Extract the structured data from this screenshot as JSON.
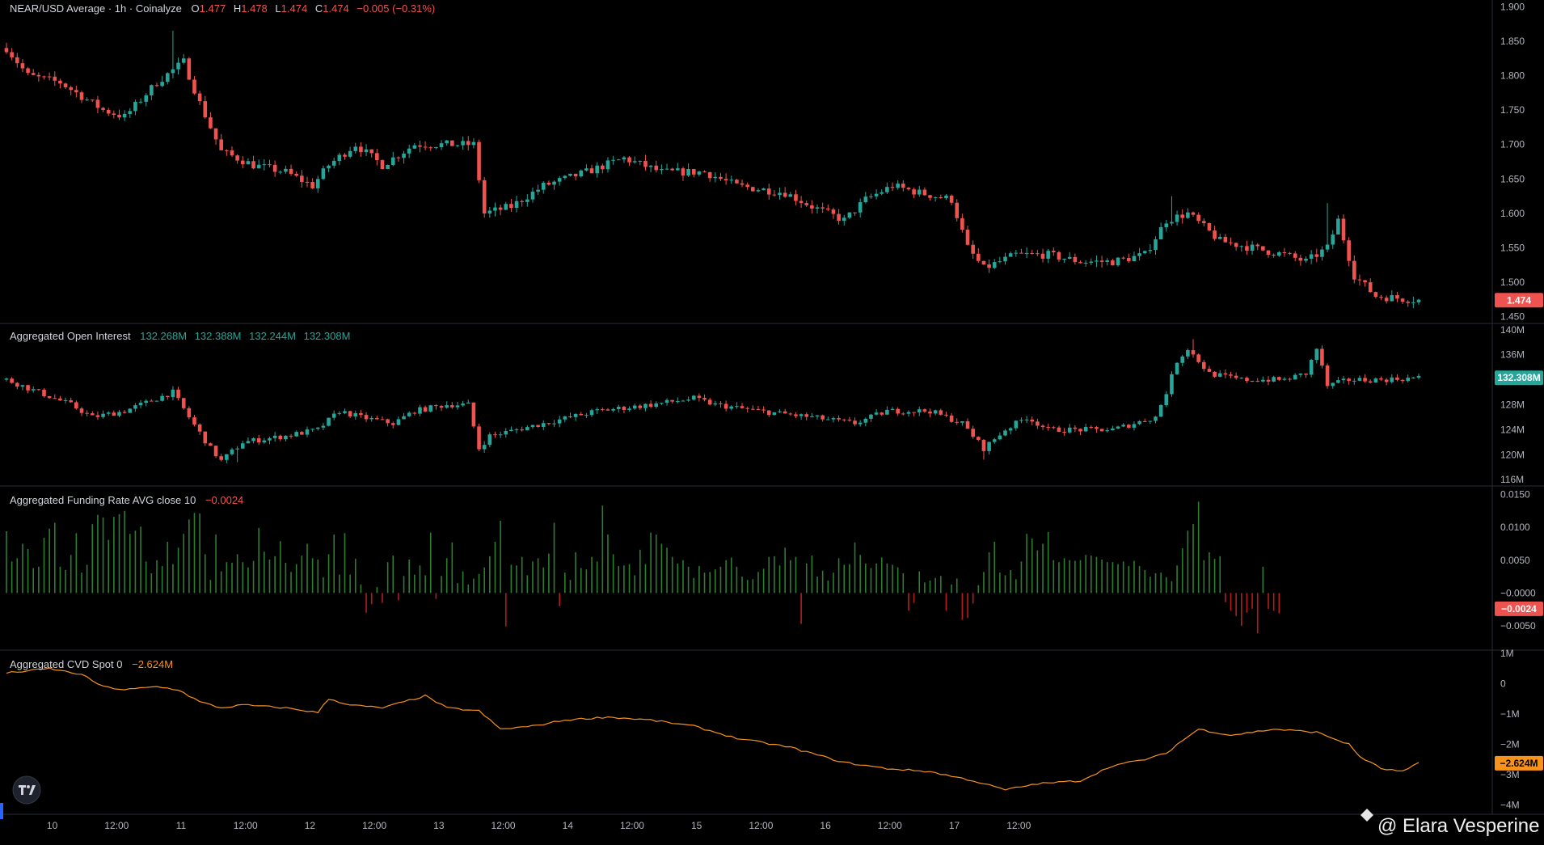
{
  "header": {
    "symbol": "NEAR/USD Average · 1h · Coinalyze",
    "o_label": "O",
    "o_value": "1.477",
    "h_label": "H",
    "h_value": "1.478",
    "l_label": "L",
    "l_value": "1.474",
    "c_label": "C",
    "c_value": "1.474",
    "change": "−0.005 (−0.31%)"
  },
  "colors": {
    "up": "#26a69a",
    "down": "#ef5350",
    "cvd": "#f7931a",
    "funding_pos": "#2e7d32",
    "funding_neg": "#b71c1c",
    "oi_tag": "#26a69a",
    "price_tag": "#ef5350",
    "funding_tag": "#ef5350",
    "cvd_tag": "#f7931a"
  },
  "x_axis": {
    "labels": [
      "10",
      "12:00",
      "11",
      "12:00",
      "12",
      "12:00",
      "13",
      "12:00",
      "14",
      "12:00",
      "15",
      "12:00",
      "16",
      "12:00",
      "17",
      "12:00"
    ]
  },
  "watermark": {
    "logo": "tradingview-logo",
    "credit": "@ Elara Vesperine"
  },
  "chart_data": [
    {
      "type": "candlestick",
      "name": "NEAR/USD Average",
      "y_ticks": [
        "1.900",
        "1.850",
        "1.800",
        "1.750",
        "1.700",
        "1.650",
        "1.600",
        "1.550",
        "1.500",
        "1.450"
      ],
      "ylim": [
        1.445,
        1.905
      ],
      "last_value": 1.474,
      "last_label": "1.474",
      "anchors": [
        [
          0,
          1.84
        ],
        [
          4,
          1.8
        ],
        [
          10,
          1.79
        ],
        [
          18,
          1.75
        ],
        [
          22,
          1.74
        ],
        [
          28,
          1.79
        ],
        [
          33,
          1.82
        ],
        [
          36,
          1.76
        ],
        [
          40,
          1.69
        ],
        [
          46,
          1.67
        ],
        [
          52,
          1.66
        ],
        [
          57,
          1.64
        ],
        [
          60,
          1.67
        ],
        [
          65,
          1.7
        ],
        [
          70,
          1.67
        ],
        [
          76,
          1.7
        ],
        [
          82,
          1.7
        ],
        [
          87,
          1.7
        ],
        [
          89,
          1.6
        ],
        [
          94,
          1.61
        ],
        [
          100,
          1.64
        ],
        [
          108,
          1.66
        ],
        [
          115,
          1.68
        ],
        [
          122,
          1.66
        ],
        [
          130,
          1.66
        ],
        [
          136,
          1.64
        ],
        [
          145,
          1.63
        ],
        [
          150,
          1.61
        ],
        [
          156,
          1.59
        ],
        [
          160,
          1.62
        ],
        [
          165,
          1.64
        ],
        [
          170,
          1.63
        ],
        [
          176,
          1.62
        ],
        [
          179,
          1.55
        ],
        [
          182,
          1.52
        ],
        [
          188,
          1.54
        ],
        [
          194,
          1.54
        ],
        [
          200,
          1.53
        ],
        [
          206,
          1.53
        ],
        [
          212,
          1.54
        ],
        [
          216,
          1.59
        ],
        [
          220,
          1.6
        ],
        [
          226,
          1.56
        ],
        [
          232,
          1.55
        ],
        [
          238,
          1.54
        ],
        [
          242,
          1.53
        ],
        [
          246,
          1.55
        ],
        [
          248,
          1.59
        ],
        [
          251,
          1.51
        ],
        [
          255,
          1.48
        ],
        [
          263,
          1.474
        ]
      ],
      "wick_spikes": [
        [
          31,
          1.865
        ],
        [
          217,
          1.625
        ],
        [
          246,
          1.615
        ],
        [
          119,
          1.685
        ],
        [
          165,
          1.645
        ]
      ]
    },
    {
      "type": "candlestick",
      "name": "Aggregated Open Interest",
      "legend": "Aggregated Open Interest",
      "values_text": [
        "132.268M",
        "132.388M",
        "132.244M",
        "132.308M"
      ],
      "y_ticks": [
        "140M",
        "136M",
        "132M",
        "128M",
        "124M",
        "120M",
        "116M"
      ],
      "ylim": [
        115.5,
        140.5
      ],
      "last_value": 132.308,
      "last_label": "132.308M",
      "anchors": [
        [
          0,
          132
        ],
        [
          6,
          130
        ],
        [
          12,
          128
        ],
        [
          16,
          126
        ],
        [
          22,
          127
        ],
        [
          28,
          129
        ],
        [
          31,
          130
        ],
        [
          34,
          126
        ],
        [
          38,
          121
        ],
        [
          40,
          119
        ],
        [
          44,
          122
        ],
        [
          52,
          123
        ],
        [
          58,
          124
        ],
        [
          62,
          127
        ],
        [
          66,
          126
        ],
        [
          72,
          125
        ],
        [
          76,
          127
        ],
        [
          82,
          128
        ],
        [
          86,
          128
        ],
        [
          88,
          121
        ],
        [
          90,
          123
        ],
        [
          100,
          125
        ],
        [
          110,
          127
        ],
        [
          120,
          128
        ],
        [
          128,
          129
        ],
        [
          132,
          128
        ],
        [
          140,
          127
        ],
        [
          150,
          126
        ],
        [
          158,
          125
        ],
        [
          164,
          127
        ],
        [
          172,
          127
        ],
        [
          178,
          125
        ],
        [
          182,
          121
        ],
        [
          186,
          124
        ],
        [
          190,
          126
        ],
        [
          194,
          124
        ],
        [
          200,
          124
        ],
        [
          206,
          124
        ],
        [
          210,
          125
        ],
        [
          214,
          126
        ],
        [
          216,
          130
        ],
        [
          218,
          135
        ],
        [
          220,
          137
        ],
        [
          224,
          133
        ],
        [
          230,
          132
        ],
        [
          238,
          132
        ],
        [
          242,
          133
        ],
        [
          244,
          137
        ],
        [
          246,
          131
        ],
        [
          250,
          132
        ],
        [
          256,
          132
        ],
        [
          263,
          132.3
        ]
      ],
      "wick_spikes": [
        [
          221,
          138.5
        ],
        [
          245,
          137.5
        ],
        [
          43,
          118.8
        ],
        [
          182,
          119.2
        ]
      ]
    },
    {
      "type": "bar",
      "name": "Aggregated Funding Rate AVG close 10",
      "legend": "Aggregated Funding Rate AVG close 10",
      "legend_value": "−0.0024",
      "y_ticks": [
        "0.0150",
        "0.0100",
        "0.0050",
        "−0.0000",
        "−0.0050"
      ],
      "ylim": [
        -0.0082,
        0.0158
      ],
      "last_value": -0.0024,
      "last_label": "−0.0024",
      "values": [
        0.0094,
        0.0048,
        0.0053,
        0.0075,
        0.0067,
        0.0038,
        0.004,
        0.0084,
        0.0098,
        0.0107,
        0.004,
        0.0035,
        0.0058,
        0.0091,
        0.0031,
        0.0043,
        0.0105,
        0.0119,
        0.0115,
        0.0081,
        0.0116,
        0.012,
        0.0125,
        0.009,
        0.0095,
        0.0101,
        0.0048,
        0.003,
        0.005,
        0.0041,
        0.0078,
        0.0044,
        0.0069,
        0.009,
        0.0112,
        0.0122,
        0.0121,
        0.0059,
        0.002,
        0.0089,
        0.0033,
        0.0047,
        0.0046,
        0.0059,
        0.0047,
        0.0039,
        0.0049,
        0.0099,
        0.0063,
        0.0051,
        0.0056,
        0.0079,
        0.0046,
        0.0032,
        0.0044,
        0.0057,
        0.0075,
        0.0053,
        0.0051,
        0.0024,
        0.0059,
        0.0089,
        0.0028,
        0.0091,
        0.0028,
        0.0052,
        0.0013,
        -0.003,
        -0.0017,
        0.0009,
        -0.0015,
        0.0047,
        0.0057,
        -0.0011,
        0.0026,
        0.0051,
        0.0028,
        0.0042,
        0.0027,
        0.0092,
        -0.0009,
        0.0026,
        0.0053,
        0.0077,
        0.0015,
        0.0033,
        0.0013,
        0.0022,
        0.0029,
        0.0039,
        0.0056,
        0.0078,
        0.011,
        -0.0051,
        0.0043,
        0.0042,
        0.0055,
        0.0027,
        0.0048,
        0.0053,
        0.0039,
        0.006,
        0.0107,
        -0.002,
        0.0031,
        0.002,
        0.0062,
        0.0038,
        0.0036,
        0.0055,
        0.0048,
        0.0133,
        0.0089,
        0.0059,
        0.0041,
        0.0042,
        0.0044,
        0.0027,
        0.0066,
        0.0044,
        0.0092,
        0.0089,
        0.0075,
        0.0069,
        0.0055,
        0.0045,
        0.005,
        0.004,
        0.0023,
        0.0041,
        0.0031,
        0.0032,
        0.0036,
        0.004,
        0.005,
        0.0054,
        0.004,
        0.0025,
        0.002,
        0.0021,
        0.0032,
        0.0037,
        0.0055,
        0.0056,
        0.0042,
        0.0069,
        0.005,
        0.0055,
        -0.0047,
        0.0045,
        0.0057,
        0.0025,
        0.0034,
        0.0019,
        0.0031,
        0.0053,
        0.0043,
        0.0044,
        0.0077,
        0.0058,
        0.0045,
        0.0038,
        0.0045,
        0.0054,
        0.0045,
        0.0043,
        0.0039,
        0.003,
        -0.0027,
        -0.0015,
        0.0033,
        0.0016,
        0.0019,
        0.0023,
        0.0026,
        -0.0027,
        0.0013,
        0.0022,
        -0.0041,
        -0.0038,
        -0.0016,
        0.0012,
        0.0032,
        0.0062,
        0.0078,
        0.0031,
        0.0027,
        0.0035,
        0.0021,
        0.0048,
        0.009,
        0.0083,
        0.0065,
        0.0075,
        0.0093,
        0.005,
        0.0047,
        0.0053,
        0.005,
        0.0049,
        0.005,
        0.0058,
        0.0057,
        0.0055,
        0.0051,
        0.0047,
        0.0047,
        0.0044,
        0.0048,
        0.0041,
        0.0049,
        0.0041,
        0.0035,
        0.0025,
        0.003,
        0.0031,
        0.0024,
        0.0018,
        0.0042,
        0.0068,
        0.0095,
        0.0105,
        0.0139,
        0.005,
        0.0062,
        0.0052,
        0.0056,
        -0.0014,
        -0.0027,
        -0.0035,
        -0.005,
        -0.003,
        -0.0024,
        -0.0061,
        0.004,
        -0.0024,
        -0.0027,
        -0.0031
      ]
    },
    {
      "type": "line",
      "name": "Aggregated CVD Spot 0",
      "legend": "Aggregated CVD Spot 0",
      "legend_value": "−2.624M",
      "y_ticks": [
        "1M",
        "0",
        "−1M",
        "−2M",
        "−3M",
        "−4M"
      ],
      "ylim": [
        -4.2,
        1.0
      ],
      "last_value": -2.624,
      "last_label": "−2.624M",
      "anchors": [
        [
          0,
          0.35
        ],
        [
          8,
          0.5
        ],
        [
          14,
          0.3
        ],
        [
          18,
          -0.1
        ],
        [
          22,
          -0.2
        ],
        [
          28,
          -0.1
        ],
        [
          32,
          -0.2
        ],
        [
          36,
          -0.6
        ],
        [
          40,
          -0.8
        ],
        [
          44,
          -0.7
        ],
        [
          52,
          -0.8
        ],
        [
          58,
          -0.95
        ],
        [
          60,
          -0.5
        ],
        [
          64,
          -0.7
        ],
        [
          70,
          -0.8
        ],
        [
          74,
          -0.6
        ],
        [
          78,
          -0.4
        ],
        [
          82,
          -0.8
        ],
        [
          88,
          -0.9
        ],
        [
          92,
          -1.5
        ],
        [
          98,
          -1.4
        ],
        [
          104,
          -1.2
        ],
        [
          112,
          -1.1
        ],
        [
          120,
          -1.2
        ],
        [
          128,
          -1.4
        ],
        [
          136,
          -1.8
        ],
        [
          146,
          -2.1
        ],
        [
          156,
          -2.6
        ],
        [
          164,
          -2.8
        ],
        [
          172,
          -2.9
        ],
        [
          180,
          -3.2
        ],
        [
          186,
          -3.5
        ],
        [
          192,
          -3.3
        ],
        [
          200,
          -3.2
        ],
        [
          206,
          -2.7
        ],
        [
          212,
          -2.5
        ],
        [
          216,
          -2.3
        ],
        [
          218,
          -2.0
        ],
        [
          222,
          -1.5
        ],
        [
          228,
          -1.7
        ],
        [
          236,
          -1.5
        ],
        [
          244,
          -1.6
        ],
        [
          250,
          -2.0
        ],
        [
          252,
          -2.4
        ],
        [
          256,
          -2.8
        ],
        [
          260,
          -2.9
        ],
        [
          263,
          -2.624
        ]
      ]
    }
  ]
}
